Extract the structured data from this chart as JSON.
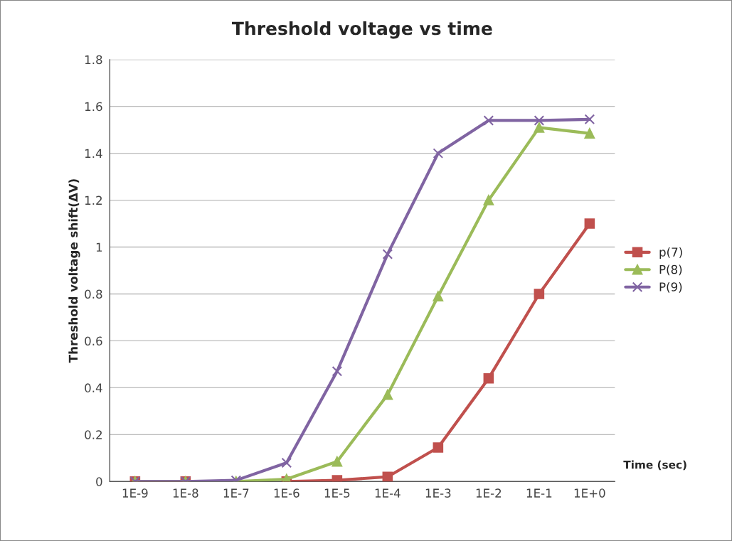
{
  "chart_data": {
    "type": "line",
    "title": "Threshold voltage vs time",
    "xlabel": "Time (sec)",
    "ylabel": "Threshold voltage shift(ΔV)",
    "categories": [
      "1E-9",
      "1E-8",
      "1E-7",
      "1E-6",
      "1E-5",
      "1E-4",
      "1E-3",
      "1E-2",
      "1E-1",
      "1E+0"
    ],
    "series": [
      {
        "name": "p(7)",
        "color": "#c0504d",
        "marker": "square",
        "values": [
          0,
          0,
          null,
          0,
          0.005,
          0.02,
          0.145,
          0.44,
          0.8,
          1.1
        ]
      },
      {
        "name": "P(8)",
        "color": "#9bbb59",
        "marker": "triangle",
        "values": [
          0,
          0,
          0,
          0.01,
          0.085,
          0.37,
          0.79,
          1.2,
          1.51,
          1.485
        ]
      },
      {
        "name": "P(9)",
        "color": "#8064a2",
        "marker": "cross",
        "values": [
          0,
          0,
          0.005,
          0.08,
          0.47,
          0.97,
          1.4,
          1.54,
          1.54,
          1.545
        ]
      }
    ],
    "ylim": [
      0,
      1.8
    ],
    "yticks": [
      0,
      0.2,
      0.4,
      0.6,
      0.8,
      1,
      1.2,
      1.4,
      1.6,
      1.8
    ],
    "grid": "y",
    "legend": "right"
  }
}
